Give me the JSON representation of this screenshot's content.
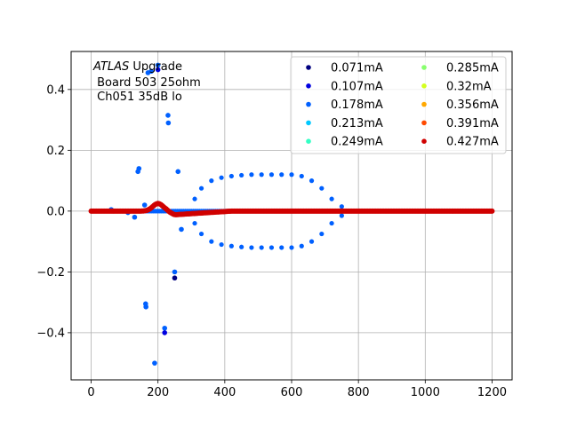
{
  "chart_data": {
    "type": "scatter",
    "title": "",
    "xlabel": "",
    "ylabel": "",
    "xlim": [
      -60,
      1260
    ],
    "ylim": [
      -0.555,
      0.525
    ],
    "xticks": [
      0,
      200,
      400,
      600,
      800,
      1000,
      1200
    ],
    "yticks": [
      -0.4,
      -0.2,
      0.0,
      0.2,
      0.4
    ],
    "xtick_labels": [
      "0",
      "200",
      "400",
      "600",
      "800",
      "1000",
      "1200"
    ],
    "ytick_labels": [
      "−0.4",
      "−0.2",
      "0.0",
      "0.2",
      "0.4"
    ],
    "grid": true,
    "legend_position": "top-right",
    "legend_columns": 2,
    "annotation": {
      "line1_italic": "ATLAS",
      "line1_rest": " Upgrade",
      "line2": " Board 503 25ohm",
      "line3": " Ch051 35dB lo"
    },
    "series": [
      {
        "name": "0.071mA",
        "color": "#00007f"
      },
      {
        "name": "0.107mA",
        "color": "#0000e0"
      },
      {
        "name": "0.178mA",
        "color": "#0060ff"
      },
      {
        "name": "0.213mA",
        "color": "#00c8ff"
      },
      {
        "name": "0.249mA",
        "color": "#33ffc4"
      },
      {
        "name": "0.285mA",
        "color": "#88ff6e"
      },
      {
        "name": "0.32mA",
        "color": "#d4ff1e"
      },
      {
        "name": "0.356mA",
        "color": "#ffa800"
      },
      {
        "name": "0.391mA",
        "color": "#ff4a00"
      },
      {
        "name": "0.427mA",
        "color": "#d00000"
      }
    ],
    "outlier_points": [
      {
        "series": 2,
        "x": 140,
        "y": 0.13
      },
      {
        "series": 2,
        "x": 143,
        "y": 0.14
      },
      {
        "series": 2,
        "x": 160,
        "y": 0.02
      },
      {
        "series": 2,
        "x": 163,
        "y": -0.305
      },
      {
        "series": 2,
        "x": 164,
        "y": -0.315
      },
      {
        "series": 2,
        "x": 170,
        "y": 0.455
      },
      {
        "series": 2,
        "x": 180,
        "y": 0.46
      },
      {
        "series": 2,
        "x": 190,
        "y": -0.5
      },
      {
        "series": 2,
        "x": 200,
        "y": 0.48
      },
      {
        "series": 1,
        "x": 200,
        "y": 0.465
      },
      {
        "series": 2,
        "x": 220,
        "y": -0.385
      },
      {
        "series": 1,
        "x": 220,
        "y": -0.4
      },
      {
        "series": 2,
        "x": 230,
        "y": 0.315
      },
      {
        "series": 2,
        "x": 231,
        "y": 0.29
      },
      {
        "series": 2,
        "x": 250,
        "y": -0.2
      },
      {
        "series": 0,
        "x": 250,
        "y": -0.22
      },
      {
        "series": 2,
        "x": 260,
        "y": 0.13
      },
      {
        "series": 2,
        "x": 270,
        "y": -0.06
      },
      {
        "series": 2,
        "x": 130,
        "y": -0.02
      },
      {
        "series": 2,
        "x": 60,
        "y": 0.005
      },
      {
        "series": 2,
        "x": 110,
        "y": -0.005
      }
    ],
    "envelope_upper": [
      {
        "x": 310,
        "y": 0.04
      },
      {
        "x": 330,
        "y": 0.075
      },
      {
        "x": 360,
        "y": 0.1
      },
      {
        "x": 390,
        "y": 0.11
      },
      {
        "x": 420,
        "y": 0.115
      },
      {
        "x": 450,
        "y": 0.118
      },
      {
        "x": 480,
        "y": 0.12
      },
      {
        "x": 510,
        "y": 0.12
      },
      {
        "x": 540,
        "y": 0.12
      },
      {
        "x": 570,
        "y": 0.12
      },
      {
        "x": 600,
        "y": 0.12
      },
      {
        "x": 630,
        "y": 0.115
      },
      {
        "x": 660,
        "y": 0.1
      },
      {
        "x": 690,
        "y": 0.075
      },
      {
        "x": 720,
        "y": 0.04
      },
      {
        "x": 750,
        "y": 0.015
      }
    ],
    "envelope_lower": [
      {
        "x": 310,
        "y": -0.04
      },
      {
        "x": 330,
        "y": -0.075
      },
      {
        "x": 360,
        "y": -0.1
      },
      {
        "x": 390,
        "y": -0.11
      },
      {
        "x": 420,
        "y": -0.115
      },
      {
        "x": 450,
        "y": -0.118
      },
      {
        "x": 480,
        "y": -0.12
      },
      {
        "x": 510,
        "y": -0.12
      },
      {
        "x": 540,
        "y": -0.12
      },
      {
        "x": 570,
        "y": -0.12
      },
      {
        "x": 600,
        "y": -0.12
      },
      {
        "x": 630,
        "y": -0.115
      },
      {
        "x": 660,
        "y": -0.1
      },
      {
        "x": 690,
        "y": -0.075
      },
      {
        "x": 720,
        "y": -0.04
      },
      {
        "x": 750,
        "y": -0.015
      }
    ],
    "pulse": {
      "x_start": 0,
      "x_end": 1200,
      "step": 6,
      "peak_x": 200,
      "peak_y": 0.025,
      "undershoot_y": -0.012
    }
  }
}
